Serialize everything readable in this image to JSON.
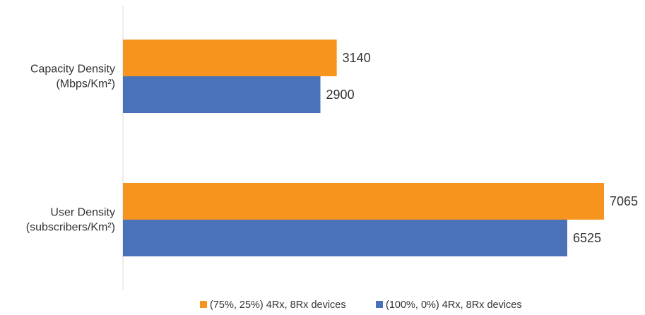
{
  "chart_data": {
    "type": "bar",
    "orientation": "horizontal",
    "categories": [
      [
        "Capacity Density",
        "(Mbps/Km²)"
      ],
      [
        "User Density",
        "(subscribers/Km²)"
      ]
    ],
    "series": [
      {
        "name": "(75%, 25%) 4Rx, 8Rx devices",
        "values": [
          3140,
          7065
        ],
        "color": "#F7941D"
      },
      {
        "name": "(100%, 0%) 4Rx, 8Rx devices",
        "values": [
          2900,
          6525
        ],
        "color": "#4A72B8"
      }
    ],
    "xlim": [
      0,
      7065
    ],
    "grid": false,
    "axis_line_color": "#D9D9D9",
    "legend_position": "bottom-center"
  }
}
